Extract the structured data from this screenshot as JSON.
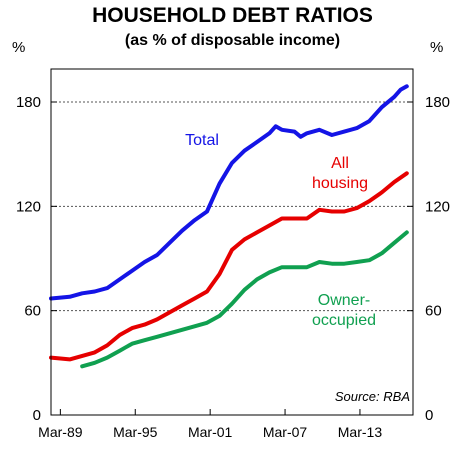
{
  "chart_data": {
    "type": "line",
    "title": "HOUSEHOLD DEBT RATIOS",
    "subtitle": "(as % of disposable income)",
    "ylabel_left": "%",
    "ylabel_right": "%",
    "ylim": [
      0,
      180
    ],
    "yticks": [
      0,
      60,
      120,
      180
    ],
    "xlim": [
      1988.5,
      2017.5
    ],
    "xticks": [
      {
        "label": "Mar-89",
        "x": 1989.25
      },
      {
        "label": "Mar-95",
        "x": 1995.25
      },
      {
        "label": "Mar-01",
        "x": 2001.25
      },
      {
        "label": "Mar-07",
        "x": 2007.25
      },
      {
        "label": "Mar-13",
        "x": 2013.25
      }
    ],
    "grid": "horizontal-dashed",
    "source": "Source: RBA",
    "series": [
      {
        "name": "Total",
        "color": "#1414e6",
        "x": [
          1988.5,
          1990,
          1991,
          1992,
          1993,
          1994,
          1995,
          1996,
          1997,
          1998,
          1999,
          2000,
          2001,
          2002,
          2003,
          2004,
          2005,
          2006,
          2006.5,
          2007,
          2008,
          2008.5,
          2009,
          2010,
          2011,
          2012,
          2013,
          2014,
          2015,
          2016,
          2016.5,
          2017
        ],
        "y": [
          67,
          68,
          70,
          71,
          73,
          78,
          83,
          88,
          92,
          99,
          106,
          112,
          117,
          133,
          145,
          152,
          157,
          162,
          166,
          164,
          163,
          160,
          162,
          164,
          161,
          163,
          165,
          169,
          177,
          183,
          187,
          189
        ]
      },
      {
        "name": "All housing",
        "label": [
          "All",
          "housing"
        ],
        "color": "#e60000",
        "x": [
          1988.5,
          1990,
          1991,
          1992,
          1993,
          1994,
          1995,
          1996,
          1997,
          1998,
          1999,
          2000,
          2001,
          2002,
          2003,
          2004,
          2005,
          2006,
          2007,
          2008,
          2009,
          2010,
          2011,
          2012,
          2013,
          2014,
          2015,
          2016,
          2017
        ],
        "y": [
          33,
          32,
          34,
          36,
          40,
          46,
          50,
          52,
          55,
          59,
          63,
          67,
          71,
          81,
          95,
          101,
          105,
          109,
          113,
          113,
          113,
          118,
          117,
          117,
          119,
          123,
          128,
          134,
          139
        ]
      },
      {
        "name": "Owner-occupied",
        "label": [
          "Owner-",
          "occupied"
        ],
        "color": "#10a050",
        "x": [
          1991,
          1992,
          1993,
          1994,
          1995,
          1996,
          1997,
          1998,
          1999,
          2000,
          2001,
          2002,
          2003,
          2004,
          2005,
          2006,
          2007,
          2008,
          2009,
          2010,
          2011,
          2012,
          2013,
          2014,
          2015,
          2016,
          2017
        ],
        "y": [
          28,
          30,
          33,
          37,
          41,
          43,
          45,
          47,
          49,
          51,
          53,
          57,
          64,
          72,
          78,
          82,
          85,
          85,
          85,
          88,
          87,
          87,
          88,
          89,
          93,
          99,
          105
        ]
      }
    ]
  }
}
